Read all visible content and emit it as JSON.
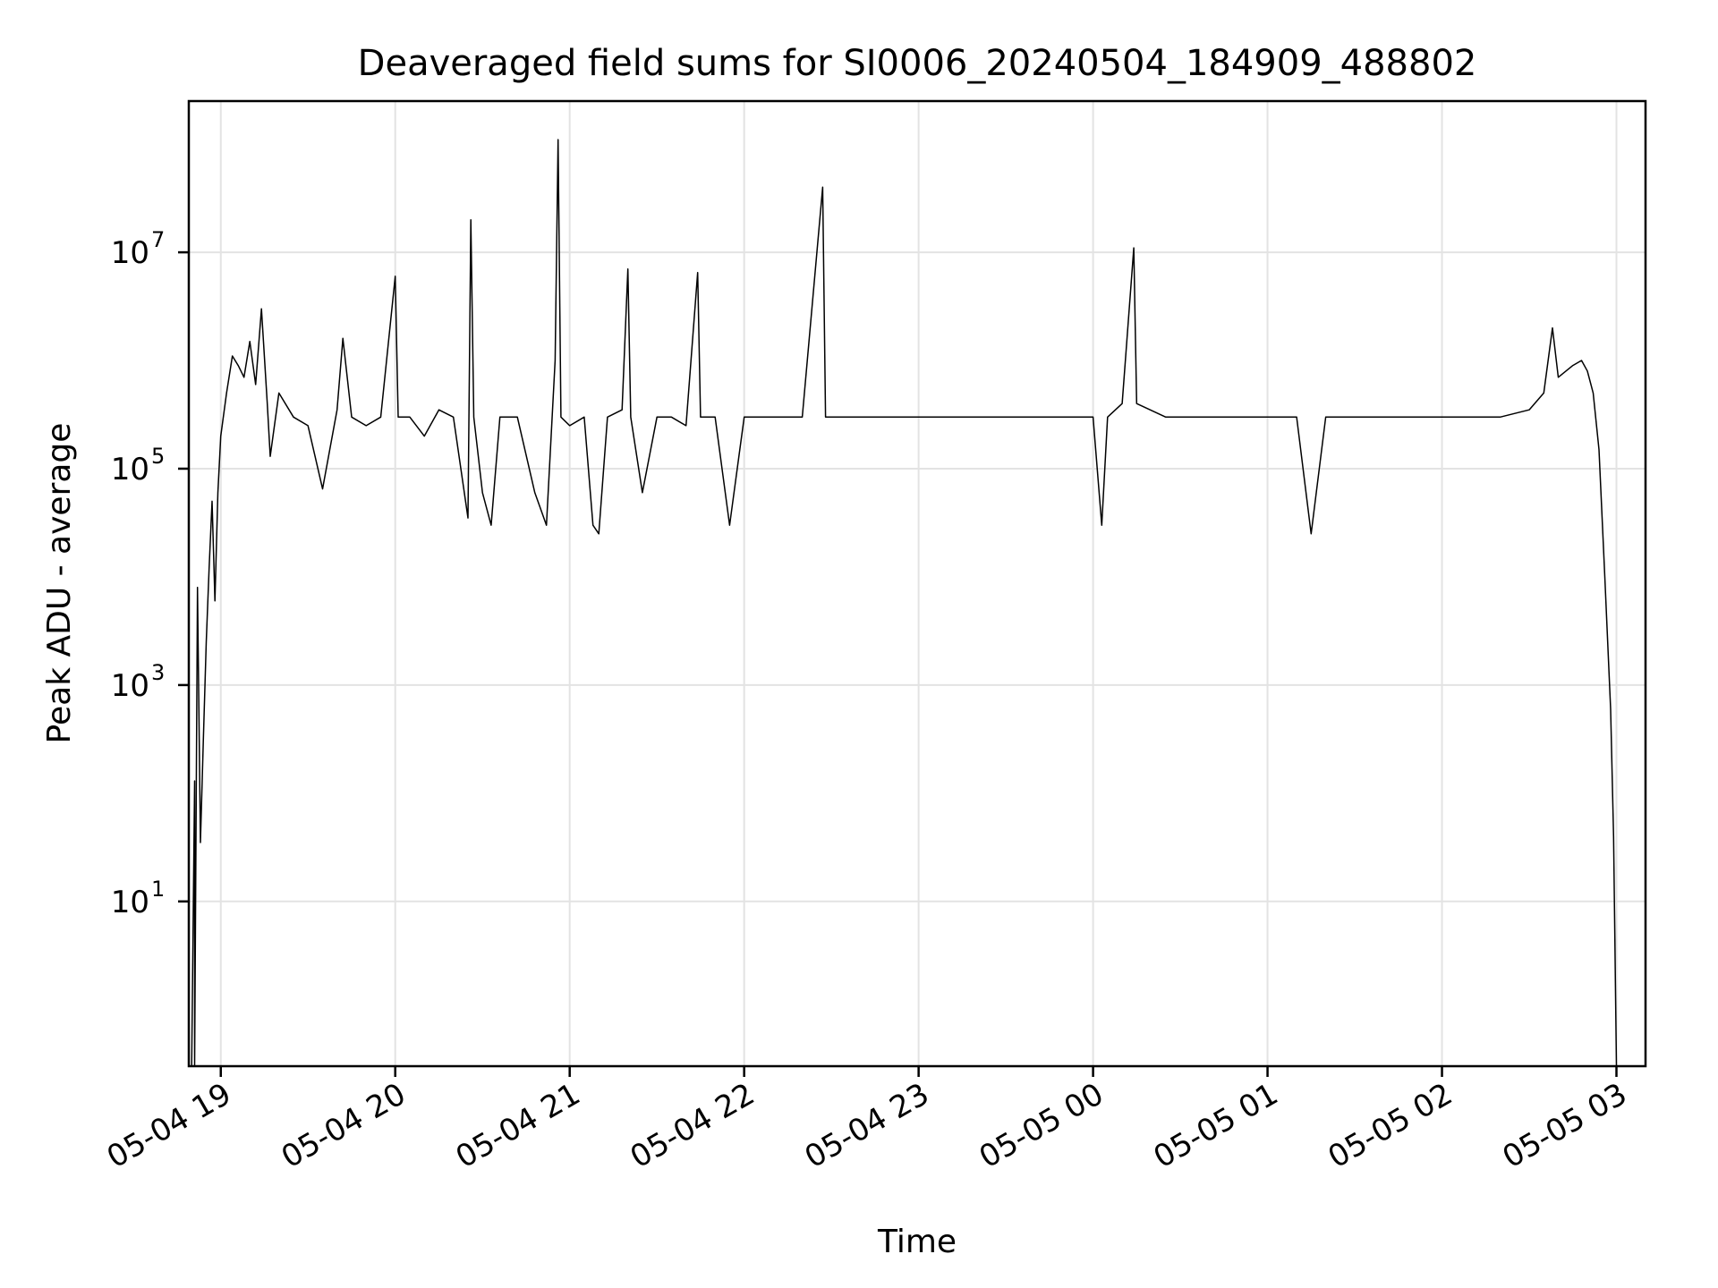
{
  "chart_data": {
    "type": "line",
    "title": "Deaveraged field sums for SI0006_20240504_184909_488802",
    "xlabel": "Time",
    "ylabel": "Peak ADU - average",
    "y_scale": "log",
    "ylim": [
      0.3,
      250000000
    ],
    "xlim": [
      "2024-05-04 18:49",
      "2024-05-05 03:10"
    ],
    "grid": true,
    "line_color": "#000000",
    "x_ticks": [
      {
        "x": "2024-05-04 19:00",
        "label": "05-04 19"
      },
      {
        "x": "2024-05-04 20:00",
        "label": "05-04 20"
      },
      {
        "x": "2024-05-04 21:00",
        "label": "05-04 21"
      },
      {
        "x": "2024-05-04 22:00",
        "label": "05-04 22"
      },
      {
        "x": "2024-05-04 23:00",
        "label": "05-04 23"
      },
      {
        "x": "2024-05-05 00:00",
        "label": "05-05 00"
      },
      {
        "x": "2024-05-05 01:00",
        "label": "05-05 01"
      },
      {
        "x": "2024-05-05 02:00",
        "label": "05-05 02"
      },
      {
        "x": "2024-05-05 03:00",
        "label": "05-05 03"
      }
    ],
    "y_ticks": [
      {
        "y": 10,
        "base": "10",
        "exp": "1"
      },
      {
        "y": 1000,
        "base": "10",
        "exp": "3"
      },
      {
        "y": 100000,
        "base": "10",
        "exp": "5"
      },
      {
        "y": 10000000,
        "base": "10",
        "exp": "7"
      }
    ],
    "series": [
      {
        "points": [
          [
            "2024-05-04 18:50",
            0.3
          ],
          [
            "2024-05-04 18:51",
            130
          ],
          [
            "2024-05-04 18:51",
            0.3
          ],
          [
            "2024-05-04 18:52",
            8000
          ],
          [
            "2024-05-04 18:53",
            35
          ],
          [
            "2024-05-04 18:54",
            300
          ],
          [
            "2024-05-04 18:55",
            2500
          ],
          [
            "2024-05-04 18:56",
            12000
          ],
          [
            "2024-05-04 18:57",
            50000
          ],
          [
            "2024-05-04 18:58",
            6000
          ],
          [
            "2024-05-04 18:59",
            60000
          ],
          [
            "2024-05-04 19:00",
            200000
          ],
          [
            "2024-05-04 19:02",
            500000
          ],
          [
            "2024-05-04 19:04",
            1100000
          ],
          [
            "2024-05-04 19:06",
            900000
          ],
          [
            "2024-05-04 19:08",
            700000
          ],
          [
            "2024-05-04 19:10",
            1500000
          ],
          [
            "2024-05-04 19:12",
            600000
          ],
          [
            "2024-05-04 19:14",
            3000000
          ],
          [
            "2024-05-04 19:16",
            400000
          ],
          [
            "2024-05-04 19:17",
            130000
          ],
          [
            "2024-05-04 19:20",
            500000
          ],
          [
            "2024-05-04 19:25",
            300000
          ],
          [
            "2024-05-04 19:30",
            250000
          ],
          [
            "2024-05-04 19:35",
            65000
          ],
          [
            "2024-05-04 19:40",
            350000
          ],
          [
            "2024-05-04 19:42",
            1600000
          ],
          [
            "2024-05-04 19:45",
            300000
          ],
          [
            "2024-05-04 19:50",
            250000
          ],
          [
            "2024-05-04 19:55",
            300000
          ],
          [
            "2024-05-04 20:00",
            6000000
          ],
          [
            "2024-05-04 20:01",
            300000
          ],
          [
            "2024-05-04 20:05",
            300000
          ],
          [
            "2024-05-04 20:10",
            200000
          ],
          [
            "2024-05-04 20:15",
            350000
          ],
          [
            "2024-05-04 20:20",
            300000
          ],
          [
            "2024-05-04 20:25",
            35000
          ],
          [
            "2024-05-04 20:26",
            20000000
          ],
          [
            "2024-05-04 20:27",
            300000
          ],
          [
            "2024-05-04 20:30",
            60000
          ],
          [
            "2024-05-04 20:33",
            30000
          ],
          [
            "2024-05-04 20:36",
            300000
          ],
          [
            "2024-05-04 20:42",
            300000
          ],
          [
            "2024-05-04 20:48",
            60000
          ],
          [
            "2024-05-04 20:52",
            30000
          ],
          [
            "2024-05-04 20:55",
            1000000
          ],
          [
            "2024-05-04 20:56",
            110000000
          ],
          [
            "2024-05-04 20:57",
            300000
          ],
          [
            "2024-05-04 21:00",
            250000
          ],
          [
            "2024-05-04 21:05",
            300000
          ],
          [
            "2024-05-04 21:08",
            30000
          ],
          [
            "2024-05-04 21:10",
            25000
          ],
          [
            "2024-05-04 21:13",
            300000
          ],
          [
            "2024-05-04 21:18",
            350000
          ],
          [
            "2024-05-04 21:20",
            7000000
          ],
          [
            "2024-05-04 21:21",
            300000
          ],
          [
            "2024-05-04 21:25",
            60000
          ],
          [
            "2024-05-04 21:30",
            300000
          ],
          [
            "2024-05-04 21:35",
            300000
          ],
          [
            "2024-05-04 21:40",
            250000
          ],
          [
            "2024-05-04 21:44",
            6500000
          ],
          [
            "2024-05-04 21:45",
            300000
          ],
          [
            "2024-05-04 21:50",
            300000
          ],
          [
            "2024-05-04 21:55",
            30000
          ],
          [
            "2024-05-04 22:00",
            300000
          ],
          [
            "2024-05-04 22:10",
            300000
          ],
          [
            "2024-05-04 22:20",
            300000
          ],
          [
            "2024-05-04 22:27",
            40000000
          ],
          [
            "2024-05-04 22:28",
            300000
          ],
          [
            "2024-05-04 22:35",
            300000
          ],
          [
            "2024-05-04 22:45",
            300000
          ],
          [
            "2024-05-04 23:00",
            300000
          ],
          [
            "2024-05-04 23:15",
            300000
          ],
          [
            "2024-05-04 23:30",
            300000
          ],
          [
            "2024-05-04 23:45",
            300000
          ],
          [
            "2024-05-05 00:00",
            300000
          ],
          [
            "2024-05-05 00:03",
            30000
          ],
          [
            "2024-05-05 00:05",
            300000
          ],
          [
            "2024-05-05 00:10",
            400000
          ],
          [
            "2024-05-05 00:14",
            11000000
          ],
          [
            "2024-05-05 00:15",
            400000
          ],
          [
            "2024-05-05 00:25",
            300000
          ],
          [
            "2024-05-05 00:35",
            300000
          ],
          [
            "2024-05-05 00:45",
            300000
          ],
          [
            "2024-05-05 01:00",
            300000
          ],
          [
            "2024-05-05 01:10",
            300000
          ],
          [
            "2024-05-05 01:15",
            25000
          ],
          [
            "2024-05-05 01:20",
            300000
          ],
          [
            "2024-05-05 01:35",
            300000
          ],
          [
            "2024-05-05 01:50",
            300000
          ],
          [
            "2024-05-05 02:05",
            300000
          ],
          [
            "2024-05-05 02:20",
            300000
          ],
          [
            "2024-05-05 02:30",
            350000
          ],
          [
            "2024-05-05 02:35",
            500000
          ],
          [
            "2024-05-05 02:38",
            2000000
          ],
          [
            "2024-05-05 02:40",
            700000
          ],
          [
            "2024-05-05 02:45",
            900000
          ],
          [
            "2024-05-05 02:48",
            1000000
          ],
          [
            "2024-05-05 02:50",
            800000
          ],
          [
            "2024-05-05 02:52",
            500000
          ],
          [
            "2024-05-05 02:54",
            150000
          ],
          [
            "2024-05-05 02:56",
            10000
          ],
          [
            "2024-05-05 02:58",
            600
          ],
          [
            "2024-05-05 02:59",
            40
          ],
          [
            "2024-05-05 03:00",
            0.3
          ]
        ]
      }
    ]
  }
}
